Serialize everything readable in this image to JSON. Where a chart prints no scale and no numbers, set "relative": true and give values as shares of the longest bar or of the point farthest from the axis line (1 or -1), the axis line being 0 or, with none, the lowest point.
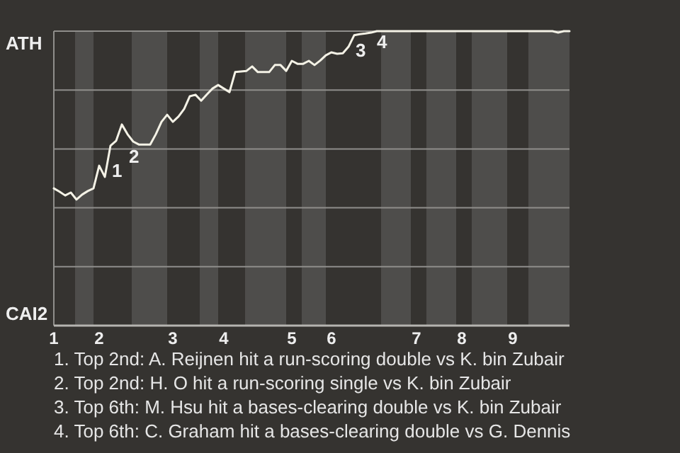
{
  "chart_data": {
    "type": "line",
    "relative": true,
    "categories": [
      "1",
      null,
      null,
      null,
      null,
      null,
      null,
      null,
      "2",
      null,
      null,
      null,
      null,
      null,
      null,
      null,
      null,
      null,
      null,
      null,
      null,
      "3",
      null,
      null,
      null,
      null,
      null,
      null,
      null,
      null,
      "4",
      null,
      null,
      null,
      null,
      null,
      null,
      null,
      null,
      null,
      null,
      null,
      "5",
      null,
      null,
      null,
      null,
      null,
      null,
      "6",
      null,
      null,
      null,
      null,
      null,
      null,
      null,
      null,
      null,
      null,
      null,
      null,
      null,
      null,
      "7",
      null,
      null,
      null,
      null,
      null,
      null,
      null,
      "8",
      null,
      null,
      null,
      null,
      null,
      null,
      null,
      null,
      "9",
      null,
      null,
      null,
      null,
      null,
      null,
      null,
      null,
      null,
      null
    ],
    "series": [
      {
        "color": "#f4f2e6",
        "values": [
          0.466,
          0.455,
          0.442,
          0.452,
          0.428,
          0.445,
          0.457,
          0.466,
          0.543,
          0.505,
          0.611,
          0.628,
          0.683,
          0.65,
          0.625,
          0.615,
          0.615,
          0.615,
          0.65,
          0.692,
          0.716,
          0.692,
          0.71,
          0.736,
          0.779,
          0.784,
          0.764,
          0.785,
          0.805,
          0.817,
          0.805,
          0.793,
          0.861,
          0.863,
          0.865,
          0.88,
          0.861,
          0.861,
          0.861,
          0.885,
          0.885,
          0.865,
          0.899,
          0.889,
          0.889,
          0.899,
          0.885,
          0.9,
          0.918,
          0.928,
          0.923,
          0.925,
          0.947,
          0.986,
          0.99,
          0.992,
          0.995,
          1,
          1,
          1,
          1,
          1,
          1,
          1,
          1,
          1,
          1,
          1,
          1,
          1,
          1,
          1,
          1,
          1,
          1,
          1,
          1,
          1,
          1,
          1,
          1,
          1,
          1,
          1,
          1,
          1,
          1,
          1,
          1,
          0.995,
          1,
          1
        ]
      }
    ],
    "grid": "y",
    "marker": "none",
    "annotations": [
      "ATH",
      "CAI2",
      "1",
      "2",
      "3",
      "4",
      "1. Top 2nd: A. Reijnen hit a run-scoring double vs K. bin Zubair",
      "2. Top 2nd: H. O hit a run-scoring single vs K. bin Zubair",
      "3. Top 6th: M. Hsu hit a bases-clearing double vs K. bin Zubair",
      "4. Top 6th: C. Graham hit a bases-clearing double vs G. Dennis"
    ]
  }
}
